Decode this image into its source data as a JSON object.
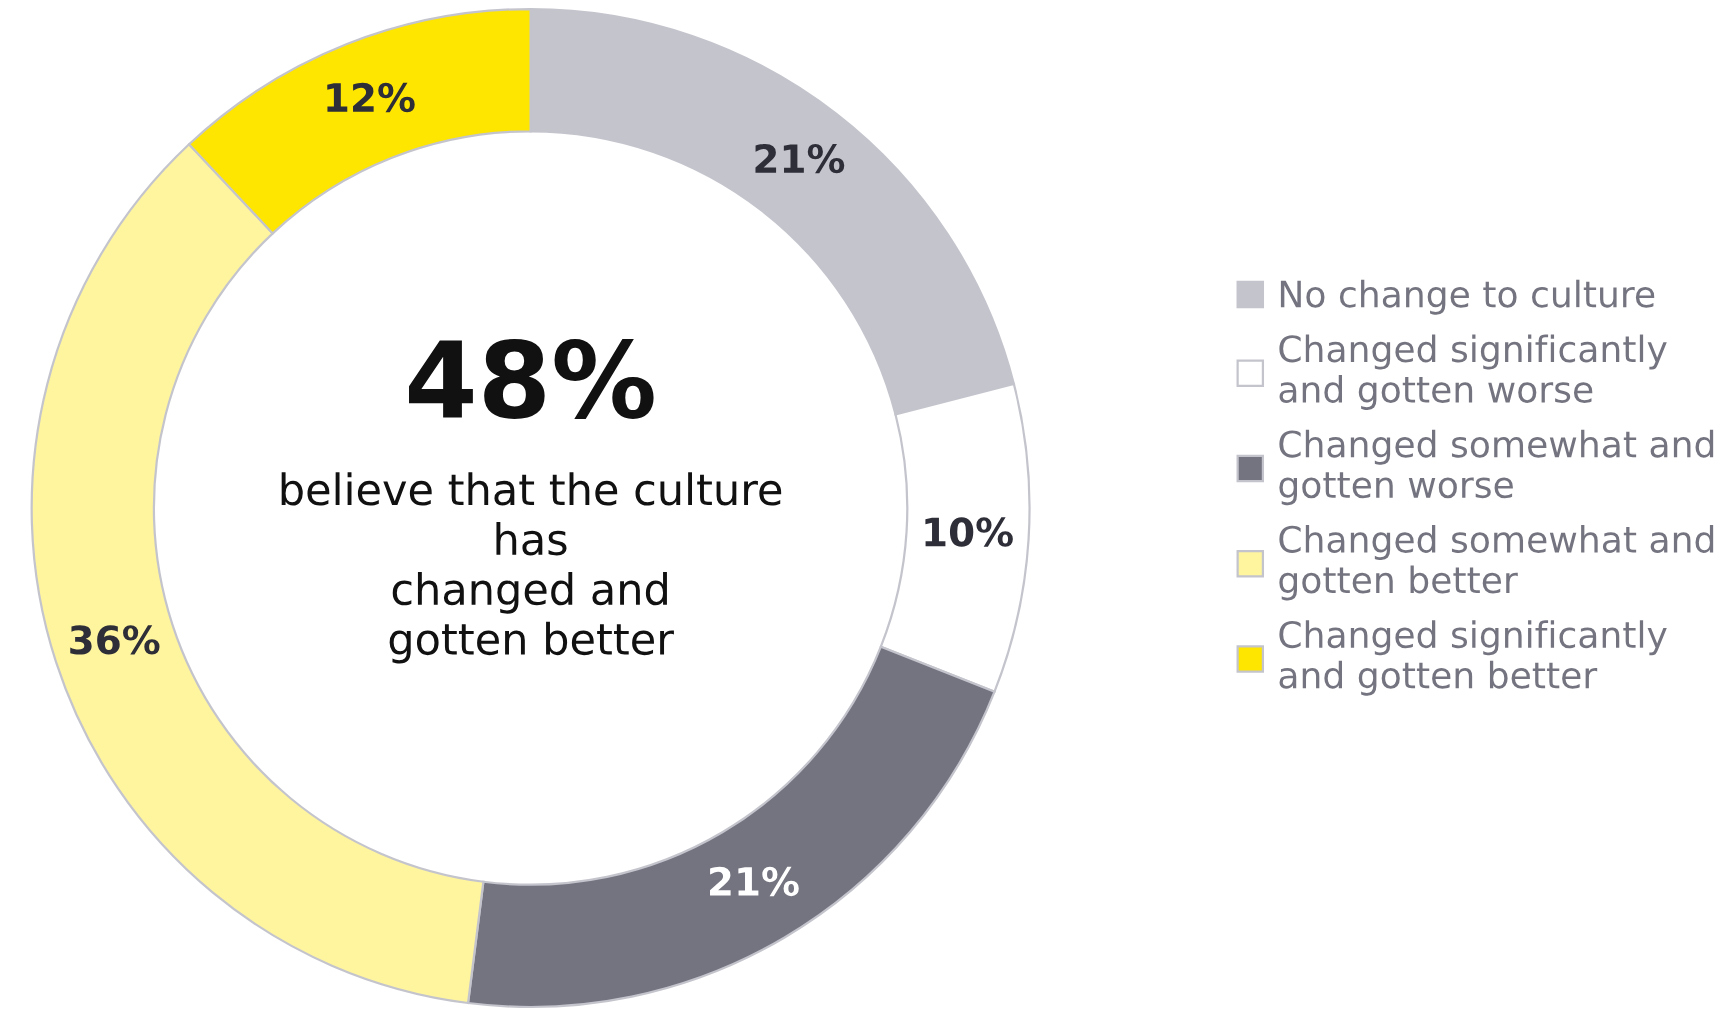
{
  "chart_data": {
    "type": "donut",
    "categories": [
      "No change to culture",
      "Changed significantly\nand gotten worse",
      "Changed somewhat and\ngotten worse",
      "Changed somewhat and\ngotten better",
      "Changed significantly\nand gotten better"
    ],
    "values": [
      21,
      10,
      21,
      36,
      12
    ],
    "colors": [
      "#c4c4cd",
      "#ffffff",
      "#747480",
      "#fff59e",
      "#ffe600"
    ],
    "value_labels": [
      "21%",
      "10%",
      "21%",
      "36%",
      "12%"
    ],
    "annotations": [
      "48%",
      "believe that the culture\nhas\nchanged and\ngotten better"
    ],
    "legend": "right"
  }
}
